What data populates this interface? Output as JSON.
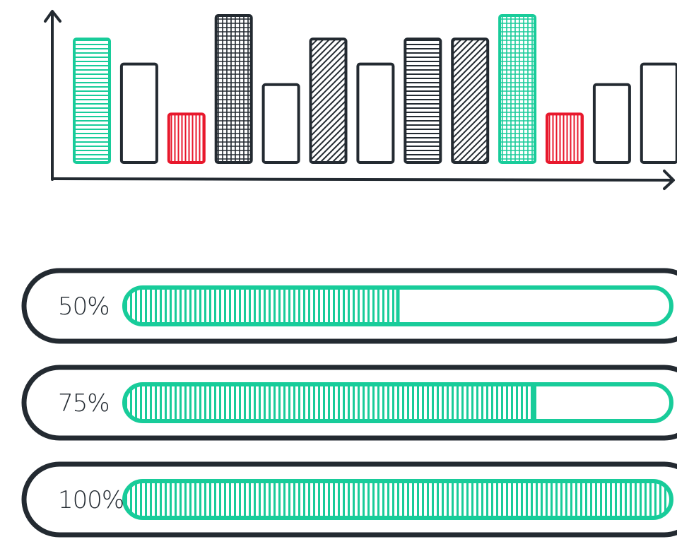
{
  "colors": {
    "ink": "#232a31",
    "green": "#18cc9a",
    "red": "#e8182c",
    "white": "#ffffff"
  },
  "chart_data": {
    "type": "bar",
    "title": "",
    "xlabel": "",
    "ylabel": "",
    "grid": false,
    "legend": "none",
    "ylim": [
      0,
      100
    ],
    "values": [
      84,
      67,
      33,
      100,
      53,
      84,
      67,
      84,
      84,
      100,
      33,
      53,
      67
    ],
    "colors": [
      "green",
      "ink",
      "red",
      "ink",
      "ink",
      "ink",
      "ink",
      "ink",
      "ink",
      "green",
      "red",
      "ink",
      "ink"
    ],
    "patterns": [
      "horizontal",
      "none",
      "vertical",
      "grid",
      "none",
      "diagonal",
      "none",
      "horizontal",
      "diagonal",
      "grid",
      "vertical",
      "none",
      "none"
    ]
  },
  "progress": [
    {
      "label": "50%",
      "value": 0.5
    },
    {
      "label": "75%",
      "value": 0.75
    },
    {
      "label": "100%",
      "value": 1.0
    }
  ]
}
